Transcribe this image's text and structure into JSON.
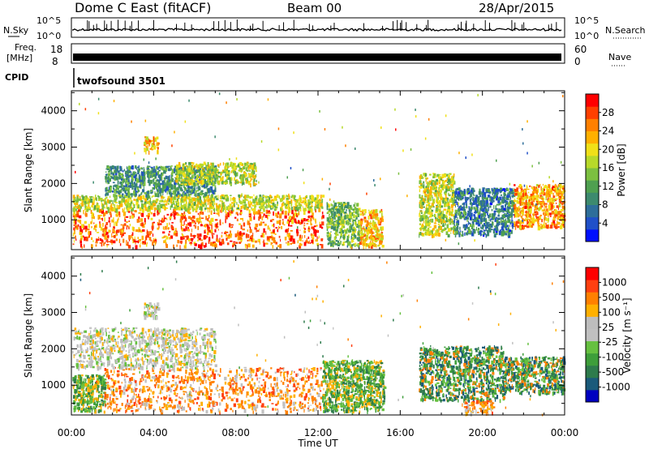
{
  "header": {
    "station": "Dome C East (fitACF)",
    "beam": "Beam 00",
    "date": "28/Apr/2015"
  },
  "summary_panels": {
    "nsky": {
      "label": "N.Sky",
      "ticks": [
        "10^5",
        "10^0"
      ]
    },
    "nsearch": {
      "label": "N.Search",
      "ticks": [
        "10^5",
        "10^0"
      ]
    },
    "freq": {
      "label_top": "Freq.",
      "label_unit": "[MHz]",
      "ticks": [
        "18",
        "8"
      ]
    },
    "nave": {
      "label": "Nave",
      "ticks": [
        "60",
        "0"
      ]
    },
    "cpid": {
      "label": "CPID",
      "program": "twofsound 3501"
    }
  },
  "chart_data": [
    {
      "type": "heatmap",
      "title": "",
      "ylabel": "Slant Range [km]",
      "xlabel": "",
      "x_ticks": [
        "00:00",
        "04:00",
        "08:00",
        "12:00",
        "16:00",
        "20:00",
        "00:00"
      ],
      "y_ticks": [
        "1000",
        "2000",
        "3000",
        "4000"
      ],
      "ylim": [
        180,
        4550
      ],
      "colorbar": {
        "label": "Power [dB]",
        "ticks": [
          "28",
          "24",
          "20",
          "16",
          "12",
          "8",
          "4"
        ],
        "range": [
          0,
          32
        ],
        "colors": [
          "#0010ff",
          "#2050c8",
          "#2e6e9a",
          "#3d8a6e",
          "#4fa050",
          "#7cc040",
          "#b7d92a",
          "#f0e018",
          "#ffb000",
          "#ff8000",
          "#ff4000",
          "#ff0000"
        ]
      },
      "regions": [
        {
          "t": [
            0.05,
            12.2
          ],
          "r": [
            300,
            1300
          ],
          "power": 26
        },
        {
          "t": [
            0.05,
            12.2
          ],
          "r": [
            1300,
            1700
          ],
          "power": 18
        },
        {
          "t": [
            1.6,
            7.0
          ],
          "r": [
            1700,
            2500
          ],
          "power": 10
        },
        {
          "t": [
            3.5,
            4.2
          ],
          "r": [
            2900,
            3300
          ],
          "power": 22
        },
        {
          "t": [
            5.0,
            9.0
          ],
          "r": [
            2000,
            2600
          ],
          "power": 17
        },
        {
          "t": [
            12.4,
            14.0
          ],
          "r": [
            300,
            1500
          ],
          "power": 14
        },
        {
          "t": [
            14.0,
            15.1
          ],
          "r": [
            300,
            1300
          ],
          "power": 22
        },
        {
          "t": [
            16.9,
            18.6
          ],
          "r": [
            600,
            2300
          ],
          "power": 18
        },
        {
          "t": [
            18.6,
            21.5
          ],
          "r": [
            600,
            1900
          ],
          "power": 8
        },
        {
          "t": [
            21.5,
            23.95
          ],
          "r": [
            800,
            2000
          ],
          "power": 24
        }
      ]
    },
    {
      "type": "heatmap",
      "title": "",
      "ylabel": "Slant Range [km]",
      "xlabel": "Time UT",
      "x_ticks": [
        "00:00",
        "04:00",
        "08:00",
        "12:00",
        "16:00",
        "20:00",
        "00:00"
      ],
      "y_ticks": [
        "1000",
        "2000",
        "3000",
        "4000"
      ],
      "ylim": [
        180,
        4550
      ],
      "colorbar": {
        "label": "Velocity [m s⁻¹]",
        "ticks": [
          "1000",
          "500",
          "100",
          "25",
          "-25",
          "-100",
          "-500",
          "-1000"
        ],
        "colors": [
          "#0000c0",
          "#1a5a7a",
          "#2e7b4c",
          "#3e9e3a",
          "#66c040",
          "#c0c0c0",
          "#bdbdbd",
          "#ffb000",
          "#ff8000",
          "#ff4010",
          "#ff0000"
        ]
      },
      "regions": [
        {
          "t": [
            0.05,
            1.6
          ],
          "r": [
            300,
            1300
          ],
          "vel": "green"
        },
        {
          "t": [
            1.6,
            12.2
          ],
          "r": [
            300,
            1500
          ],
          "vel": "orange"
        },
        {
          "t": [
            0.05,
            7.0
          ],
          "r": [
            1500,
            2600
          ],
          "vel": "grey"
        },
        {
          "t": [
            3.5,
            4.2
          ],
          "r": [
            2900,
            3300
          ],
          "vel": "grey"
        },
        {
          "t": [
            12.2,
            15.2
          ],
          "r": [
            300,
            1700
          ],
          "vel": "green"
        },
        {
          "t": [
            16.9,
            21.0
          ],
          "r": [
            600,
            2100
          ],
          "vel": "darkgreen"
        },
        {
          "t": [
            19.0,
            20.5
          ],
          "r": [
            250,
            600
          ],
          "vel": "orange"
        },
        {
          "t": [
            21.0,
            23.95
          ],
          "r": [
            800,
            1800
          ],
          "vel": "darkgreen"
        }
      ]
    }
  ]
}
